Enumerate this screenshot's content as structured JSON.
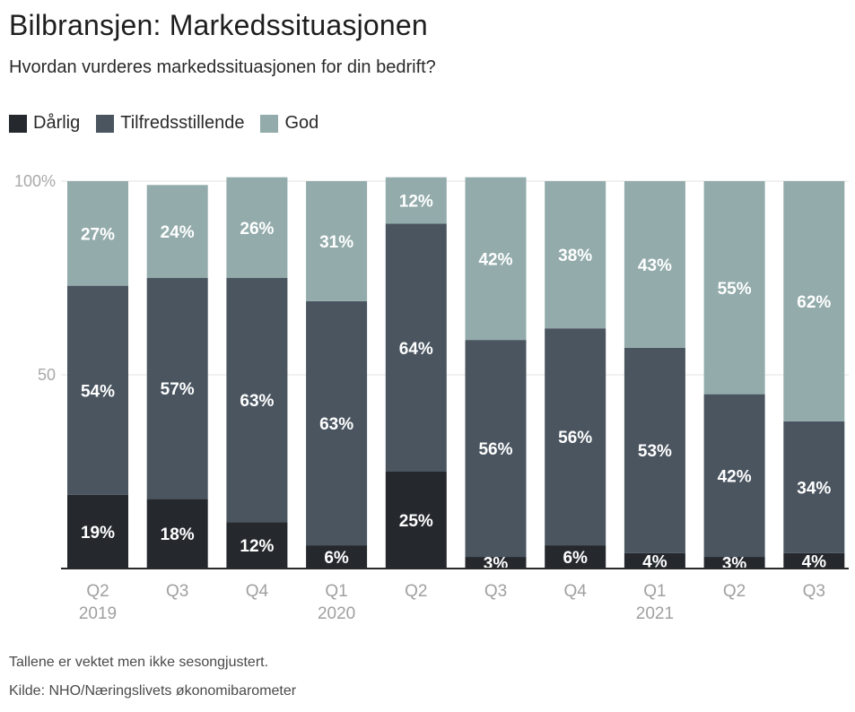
{
  "title": "Bilbransjen: Markedssituasjonen",
  "subtitle": "Hvordan vurderes markedssituasjonen for din bedrift?",
  "legend": [
    {
      "name": "Dårlig",
      "color": "#25292e"
    },
    {
      "name": "Tilfredsstillende",
      "color": "#4a5560"
    },
    {
      "name": "God",
      "color": "#93abab"
    }
  ],
  "chart_data": {
    "type": "bar",
    "stacked": true,
    "categories": [
      "Q2",
      "Q3",
      "Q4",
      "Q1",
      "Q2",
      "Q3",
      "Q4",
      "Q1",
      "Q2",
      "Q3"
    ],
    "year_labels": [
      "2019",
      "",
      "",
      "2020",
      "",
      "",
      "",
      "2021",
      "",
      ""
    ],
    "series": [
      {
        "name": "Dårlig",
        "values": [
          19,
          18,
          12,
          6,
          25,
          3,
          6,
          4,
          3,
          4
        ],
        "labels": [
          "19%",
          "18%",
          "12%",
          "6%",
          "25%",
          "3%",
          "6%",
          "4%",
          "3%",
          "4%"
        ]
      },
      {
        "name": "Tilfredsstillende",
        "values": [
          54,
          57,
          63,
          63,
          64,
          56,
          56,
          53,
          42,
          34
        ],
        "labels": [
          "54%",
          "57%",
          "63%",
          "63%",
          "64%",
          "56%",
          "56%",
          "53%",
          "42%",
          "34%"
        ]
      },
      {
        "name": "God",
        "values": [
          27,
          24,
          26,
          31,
          12,
          42,
          38,
          43,
          55,
          62
        ],
        "labels": [
          "27%",
          "24%",
          "26%",
          "31%",
          "12%",
          "42%",
          "38%",
          "43%",
          "55%",
          "62%"
        ]
      }
    ],
    "yticks": [
      {
        "value": 100,
        "label": "100%"
      },
      {
        "value": 50,
        "label": "50"
      }
    ],
    "ylim": [
      0,
      100
    ],
    "xlabel": "",
    "ylabel": ""
  },
  "footnote": "Tallene er vektet men ikke sesongjustert.",
  "source": "Kilde: NHO/Næringslivets økonomibarometer"
}
